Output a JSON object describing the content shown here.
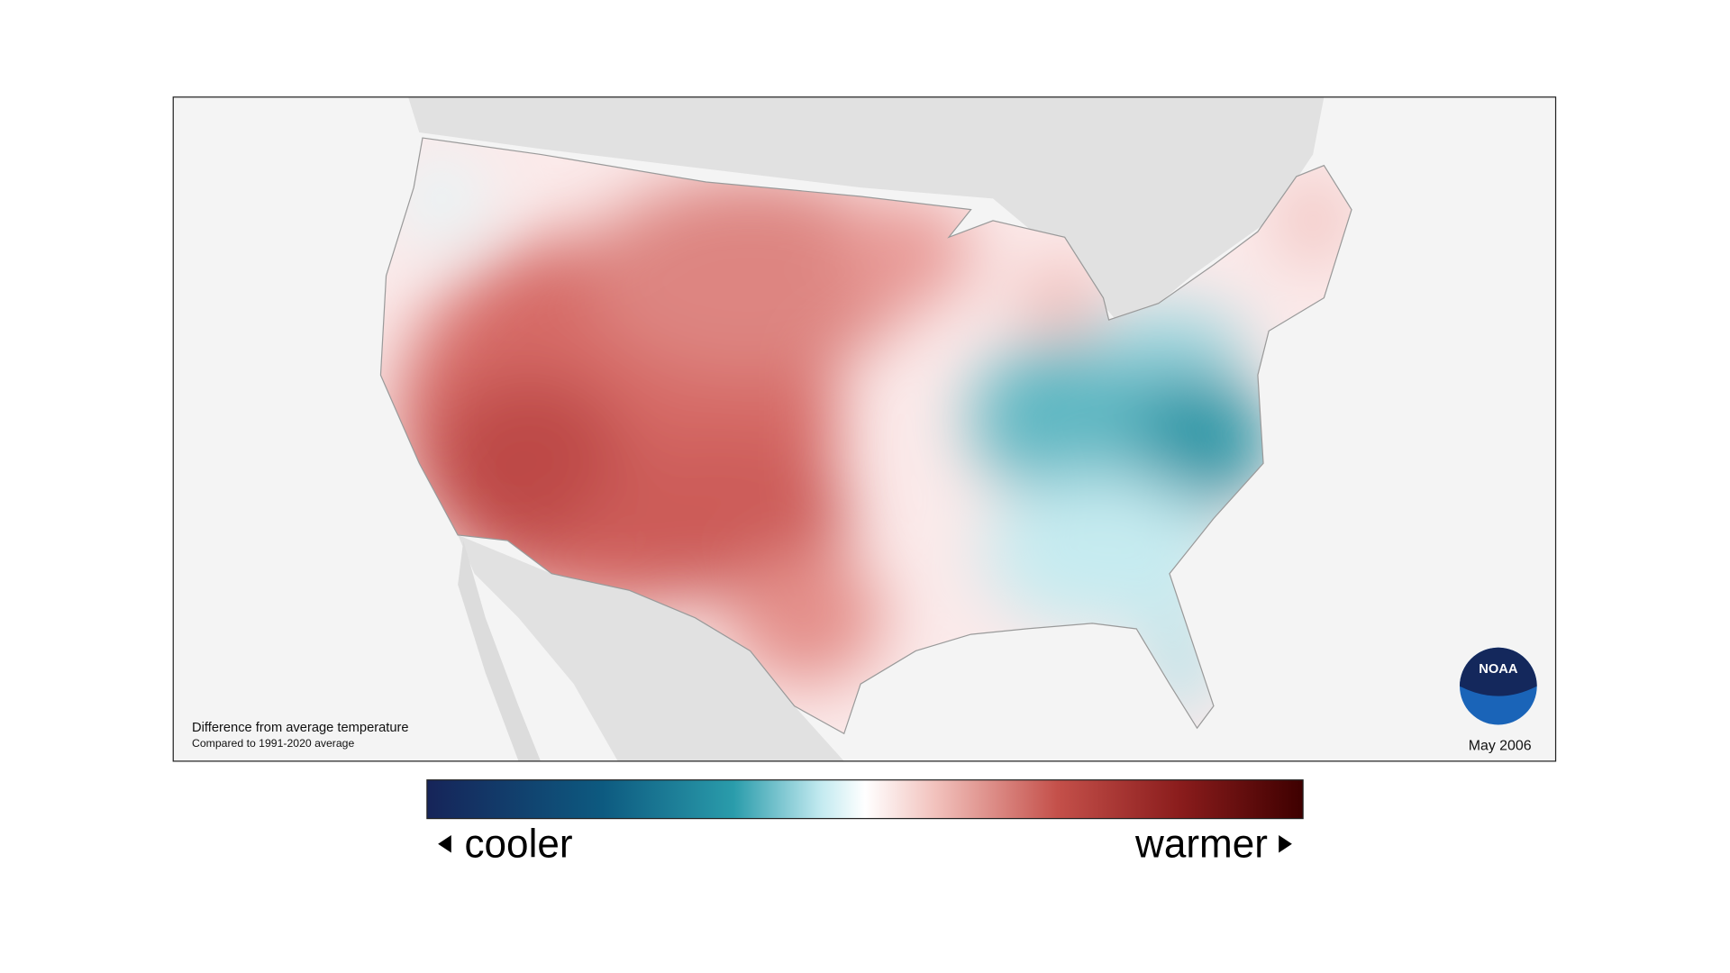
{
  "map": {
    "caption": "Difference from average temperature",
    "subcaption": "Compared to 1991-2020 average",
    "date": "May 2006",
    "logo": "NOAA"
  },
  "legend": {
    "low_label": "cooler",
    "high_label": "warmer"
  }
}
